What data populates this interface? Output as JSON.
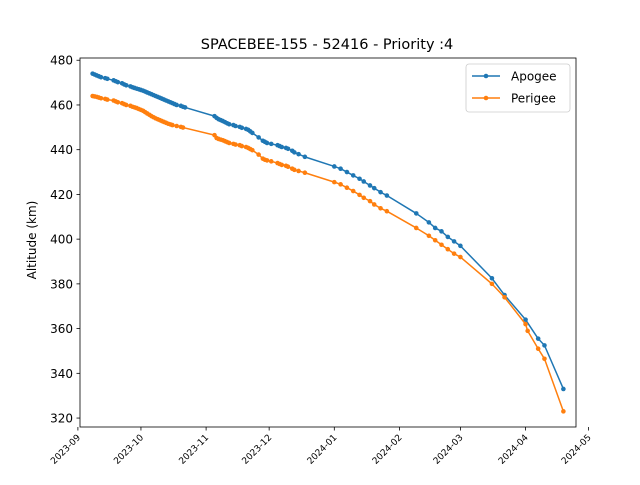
{
  "chart_data": {
    "type": "line",
    "title": "SPACEBEE-155 - 52416 - Priority :4",
    "xlabel": "",
    "ylabel": "Altitude (km)",
    "x_axis_type": "date",
    "xlim": [
      "2023-09-02",
      "2024-04-25"
    ],
    "ylim": [
      316,
      481
    ],
    "xticks": [
      "2023-09",
      "2023-10",
      "2023-11",
      "2023-12",
      "2024-01",
      "2024-02",
      "2024-03",
      "2024-04",
      "2024-05"
    ],
    "yticks": [
      320,
      340,
      360,
      380,
      400,
      420,
      440,
      460,
      480
    ],
    "grid": false,
    "legend_position": "top-right",
    "colors": {
      "Apogee": "#1f77b4",
      "Perigee": "#ff7f0e"
    },
    "series": [
      {
        "name": "Apogee",
        "points": [
          [
            "2023-09-08",
            474.0
          ],
          [
            "2023-09-09",
            473.6
          ],
          [
            "2023-09-10",
            473.2
          ],
          [
            "2023-09-11",
            472.8
          ],
          [
            "2023-09-12",
            472.4
          ],
          [
            "2023-09-14",
            472.0
          ],
          [
            "2023-09-15",
            471.7
          ],
          [
            "2023-09-18",
            471.0
          ],
          [
            "2023-09-19",
            470.6
          ],
          [
            "2023-09-20",
            470.2
          ],
          [
            "2023-09-22",
            469.7
          ],
          [
            "2023-09-23",
            469.2
          ],
          [
            "2023-09-24",
            468.8
          ],
          [
            "2023-09-26",
            468.3
          ],
          [
            "2023-09-27",
            467.9
          ],
          [
            "2023-09-28",
            467.6
          ],
          [
            "2023-09-29",
            467.3
          ],
          [
            "2023-09-30",
            467.0
          ],
          [
            "2023-10-01",
            466.7
          ],
          [
            "2023-10-02",
            466.4
          ],
          [
            "2023-10-03",
            466.0
          ],
          [
            "2023-10-04",
            465.6
          ],
          [
            "2023-10-05",
            465.2
          ],
          [
            "2023-10-06",
            464.8
          ],
          [
            "2023-10-07",
            464.4
          ],
          [
            "2023-10-08",
            464.0
          ],
          [
            "2023-10-09",
            463.6
          ],
          [
            "2023-10-10",
            463.2
          ],
          [
            "2023-10-11",
            462.8
          ],
          [
            "2023-10-12",
            462.4
          ],
          [
            "2023-10-13",
            462.0
          ],
          [
            "2023-10-14",
            461.6
          ],
          [
            "2023-10-15",
            461.2
          ],
          [
            "2023-10-16",
            460.8
          ],
          [
            "2023-10-17",
            460.4
          ],
          [
            "2023-10-18",
            460.0
          ],
          [
            "2023-10-20",
            459.6
          ],
          [
            "2023-10-21",
            459.2
          ],
          [
            "2023-10-22",
            458.9
          ],
          [
            "2023-11-05",
            455.0
          ],
          [
            "2023-11-06",
            454.2
          ],
          [
            "2023-11-07",
            453.6
          ],
          [
            "2023-11-08",
            453.2
          ],
          [
            "2023-11-09",
            452.8
          ],
          [
            "2023-11-10",
            452.3
          ],
          [
            "2023-11-11",
            451.8
          ],
          [
            "2023-11-12",
            451.4
          ],
          [
            "2023-11-14",
            451.0
          ],
          [
            "2023-11-15",
            450.6
          ],
          [
            "2023-11-17",
            450.2
          ],
          [
            "2023-11-18",
            449.8
          ],
          [
            "2023-11-20",
            449.3
          ],
          [
            "2023-11-21",
            448.9
          ],
          [
            "2023-11-22",
            448.2
          ],
          [
            "2023-11-23",
            447.5
          ],
          [
            "2023-11-26",
            445.5
          ],
          [
            "2023-11-28",
            444.0
          ],
          [
            "2023-11-29",
            443.5
          ],
          [
            "2023-11-30",
            443.0
          ],
          [
            "2023-12-02",
            442.6
          ],
          [
            "2023-12-05",
            442.0
          ],
          [
            "2023-12-06",
            441.6
          ],
          [
            "2023-12-07",
            441.2
          ],
          [
            "2023-12-09",
            440.8
          ],
          [
            "2023-12-10",
            440.4
          ],
          [
            "2023-12-12",
            439.5
          ],
          [
            "2023-12-13",
            438.8
          ],
          [
            "2023-12-15",
            438.0
          ],
          [
            "2023-12-18",
            436.8
          ],
          [
            "2024-01-01",
            432.5
          ],
          [
            "2024-01-04",
            431.5
          ],
          [
            "2024-01-07",
            430.0
          ],
          [
            "2024-01-10",
            428.5
          ],
          [
            "2024-01-13",
            427.0
          ],
          [
            "2024-01-15",
            425.8
          ],
          [
            "2024-01-18",
            424.0
          ],
          [
            "2024-01-20",
            422.8
          ],
          [
            "2024-01-23",
            421.0
          ],
          [
            "2024-01-26",
            419.5
          ],
          [
            "2024-02-09",
            411.5
          ],
          [
            "2024-02-15",
            407.5
          ],
          [
            "2024-02-18",
            405.0
          ],
          [
            "2024-02-21",
            403.5
          ],
          [
            "2024-02-24",
            401.0
          ],
          [
            "2024-02-27",
            399.0
          ],
          [
            "2024-03-01",
            397.0
          ],
          [
            "2024-03-16",
            382.5
          ],
          [
            "2024-03-22",
            375.0
          ],
          [
            "2024-04-01",
            364.0
          ],
          [
            "2024-04-07",
            355.5
          ],
          [
            "2024-04-10",
            352.5
          ],
          [
            "2024-04-19",
            333.0
          ]
        ]
      },
      {
        "name": "Perigee",
        "points": [
          [
            "2023-09-08",
            464.0
          ],
          [
            "2023-09-09",
            463.8
          ],
          [
            "2023-09-10",
            463.6
          ],
          [
            "2023-09-11",
            463.3
          ],
          [
            "2023-09-12",
            463.0
          ],
          [
            "2023-09-14",
            462.7
          ],
          [
            "2023-09-15",
            462.4
          ],
          [
            "2023-09-18",
            462.0
          ],
          [
            "2023-09-19",
            461.6
          ],
          [
            "2023-09-20",
            461.2
          ],
          [
            "2023-09-22",
            460.8
          ],
          [
            "2023-09-23",
            460.4
          ],
          [
            "2023-09-24",
            460.0
          ],
          [
            "2023-09-26",
            459.6
          ],
          [
            "2023-09-27",
            459.2
          ],
          [
            "2023-09-28",
            458.9
          ],
          [
            "2023-09-29",
            458.6
          ],
          [
            "2023-09-30",
            458.2
          ],
          [
            "2023-10-01",
            457.8
          ],
          [
            "2023-10-02",
            457.4
          ],
          [
            "2023-10-03",
            456.8
          ],
          [
            "2023-10-04",
            456.2
          ],
          [
            "2023-10-05",
            455.6
          ],
          [
            "2023-10-06",
            455.0
          ],
          [
            "2023-10-07",
            454.5
          ],
          [
            "2023-10-08",
            454.0
          ],
          [
            "2023-10-09",
            453.6
          ],
          [
            "2023-10-10",
            453.2
          ],
          [
            "2023-10-11",
            452.8
          ],
          [
            "2023-10-12",
            452.4
          ],
          [
            "2023-10-13",
            452.0
          ],
          [
            "2023-10-14",
            451.6
          ],
          [
            "2023-10-15",
            451.3
          ],
          [
            "2023-10-16",
            451.0
          ],
          [
            "2023-10-18",
            450.6
          ],
          [
            "2023-10-20",
            450.2
          ],
          [
            "2023-10-21",
            449.9
          ],
          [
            "2023-11-05",
            446.5
          ],
          [
            "2023-11-06",
            445.2
          ],
          [
            "2023-11-07",
            444.8
          ],
          [
            "2023-11-08",
            444.5
          ],
          [
            "2023-11-09",
            444.2
          ],
          [
            "2023-11-10",
            443.8
          ],
          [
            "2023-11-11",
            443.4
          ],
          [
            "2023-11-12",
            443.0
          ],
          [
            "2023-11-14",
            442.6
          ],
          [
            "2023-11-15",
            442.3
          ],
          [
            "2023-11-17",
            442.0
          ],
          [
            "2023-11-18",
            441.6
          ],
          [
            "2023-11-20",
            441.2
          ],
          [
            "2023-11-21",
            440.8
          ],
          [
            "2023-11-22",
            440.3
          ],
          [
            "2023-11-23",
            439.8
          ],
          [
            "2023-11-26",
            437.8
          ],
          [
            "2023-11-28",
            436.0
          ],
          [
            "2023-11-29",
            435.5
          ],
          [
            "2023-11-30",
            435.2
          ],
          [
            "2023-12-02",
            434.8
          ],
          [
            "2023-12-05",
            434.0
          ],
          [
            "2023-12-06",
            433.6
          ],
          [
            "2023-12-07",
            433.2
          ],
          [
            "2023-12-09",
            432.8
          ],
          [
            "2023-12-10",
            432.4
          ],
          [
            "2023-12-12",
            431.5
          ],
          [
            "2023-12-13",
            431.0
          ],
          [
            "2023-12-15",
            430.5
          ],
          [
            "2023-12-18",
            429.7
          ],
          [
            "2024-01-01",
            425.5
          ],
          [
            "2024-01-04",
            424.5
          ],
          [
            "2024-01-07",
            423.0
          ],
          [
            "2024-01-10",
            421.5
          ],
          [
            "2024-01-13",
            419.8
          ],
          [
            "2024-01-15",
            418.5
          ],
          [
            "2024-01-18",
            417.0
          ],
          [
            "2024-01-20",
            415.5
          ],
          [
            "2024-01-23",
            413.8
          ],
          [
            "2024-01-26",
            412.5
          ],
          [
            "2024-02-09",
            405.0
          ],
          [
            "2024-02-15",
            401.5
          ],
          [
            "2024-02-18",
            399.5
          ],
          [
            "2024-02-21",
            397.5
          ],
          [
            "2024-02-24",
            395.5
          ],
          [
            "2024-02-27",
            393.5
          ],
          [
            "2024-03-01",
            392.0
          ],
          [
            "2024-03-16",
            380.0
          ],
          [
            "2024-03-22",
            374.0
          ],
          [
            "2024-04-01",
            362.0
          ],
          [
            "2024-04-02",
            359.0
          ],
          [
            "2024-04-07",
            351.0
          ],
          [
            "2024-04-10",
            346.5
          ],
          [
            "2024-04-19",
            323.0
          ]
        ]
      }
    ]
  }
}
